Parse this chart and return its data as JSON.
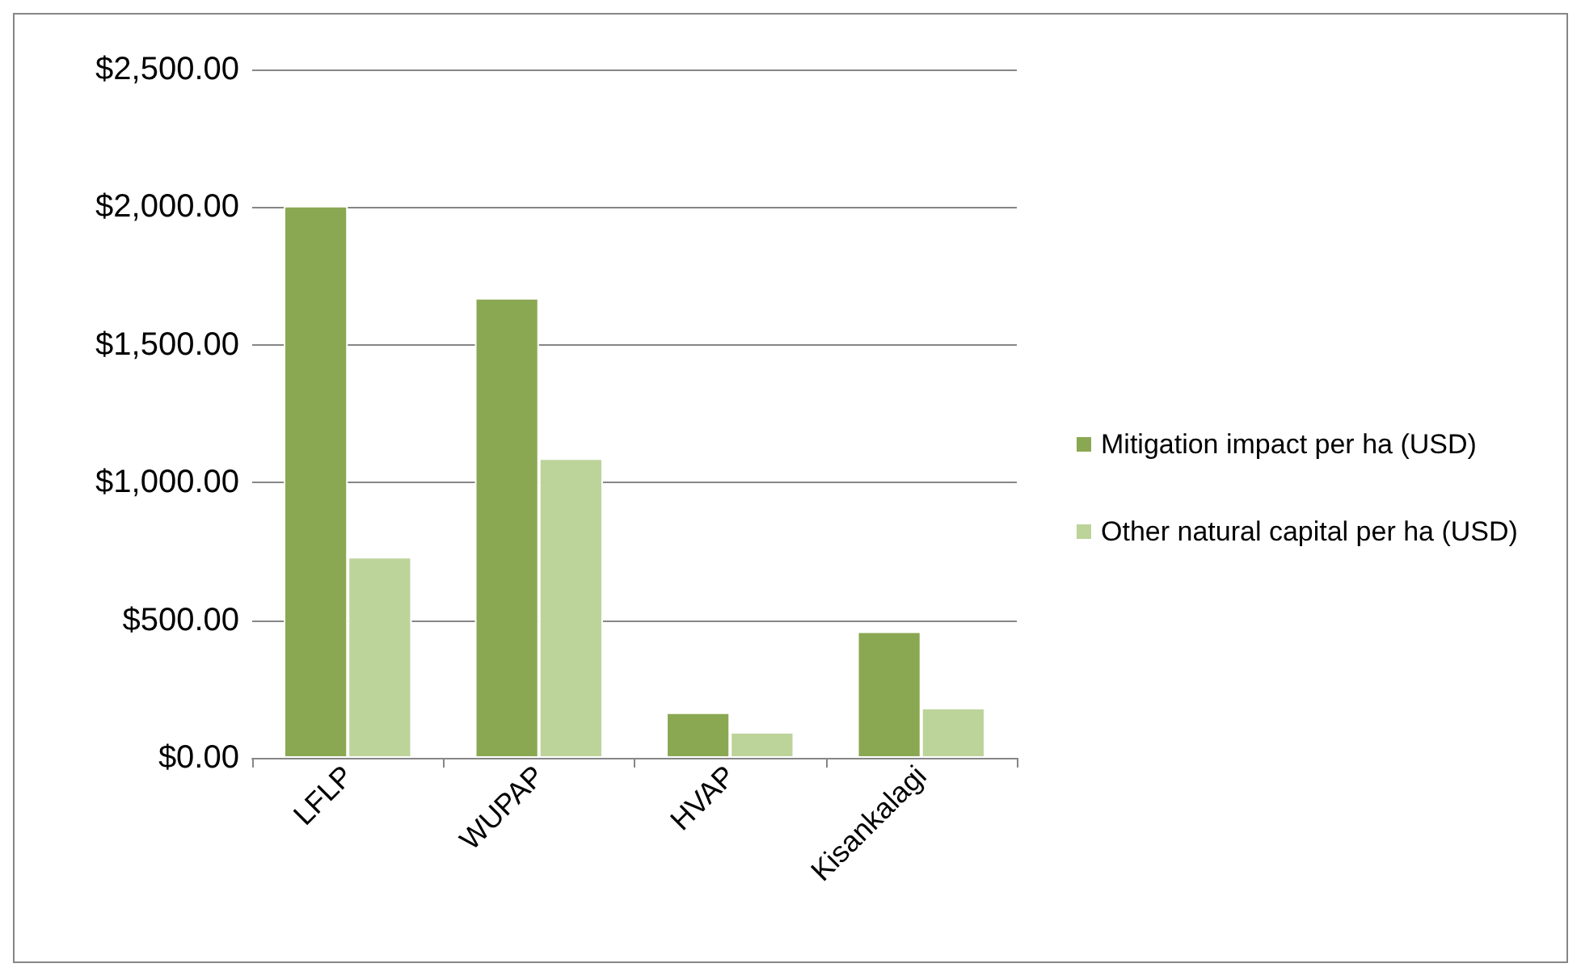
{
  "chart_data": {
    "type": "bar",
    "categories": [
      "LFLP",
      "WUPAP",
      "HVAP",
      "Kisankalagi"
    ],
    "series": [
      {
        "name": "Mitigation impact per ha (USD)",
        "color": "#8aa852",
        "values": [
          2005,
          1670,
          165,
          459
        ]
      },
      {
        "name": "Other natural capital per ha (USD)",
        "color": "#bcd39a",
        "values": [
          730,
          1088,
          94,
          182
        ]
      }
    ],
    "ylim": [
      0,
      2500
    ],
    "yticks": [
      {
        "value": 0,
        "label": "$0.00"
      },
      {
        "value": 500,
        "label": "$500.00"
      },
      {
        "value": 1000,
        "label": "$1,000.00"
      },
      {
        "value": 1500,
        "label": "$1,500.00"
      },
      {
        "value": 2000,
        "label": "$2,000.00"
      },
      {
        "value": 2500,
        "label": "$2,500.00"
      }
    ],
    "grid": "y",
    "legend": "right"
  }
}
